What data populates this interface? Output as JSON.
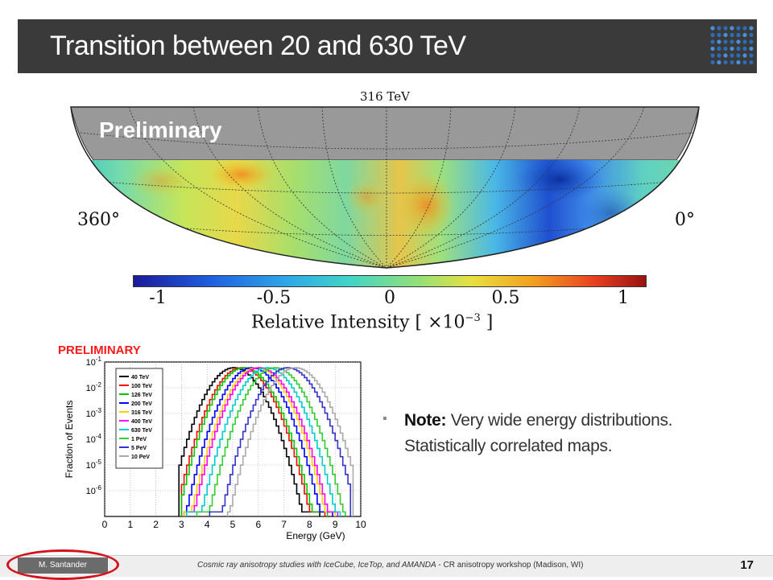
{
  "slide": {
    "title": "Transition between 20 and 630 TeV",
    "page_number": "17"
  },
  "skymap": {
    "energy_label": "316 TeV",
    "preliminary_label": "Preliminary",
    "lon_left": "360°",
    "lon_right": "0°",
    "colorbar_ticks": [
      "-1",
      "-0.5",
      "0",
      "0.5",
      "1"
    ],
    "colorbar_label": "Relative Intensity [ ×10",
    "colorbar_label_exp": "−3",
    "colorbar_label_end": " ]"
  },
  "chart_data": {
    "type": "line",
    "title": "PRELIMINARY",
    "xlabel": "Energy (GeV)",
    "ylabel": "Fraction of Events",
    "xlim": [
      0,
      10
    ],
    "ylim": [
      1e-07,
      0.1
    ],
    "yscale": "log",
    "xticks": [
      "0",
      "1",
      "2",
      "3",
      "4",
      "5",
      "6",
      "7",
      "8",
      "9",
      "10"
    ],
    "yticks": [
      "10-1",
      "10-2",
      "10-3",
      "10-4",
      "10-5",
      "10-6"
    ],
    "legend_position": "top-left",
    "series": [
      {
        "name": "40 TeV",
        "color": "#000000",
        "peak": 5.0,
        "start": 2.9,
        "end": 8.3
      },
      {
        "name": "100 TeV",
        "color": "#ff0000",
        "peak": 5.3,
        "start": 3.0,
        "end": 8.5
      },
      {
        "name": "126 TeV",
        "color": "#00c800",
        "peak": 5.4,
        "start": 3.0,
        "end": 8.6
      },
      {
        "name": "200 TeV",
        "color": "#0000ff",
        "peak": 5.7,
        "start": 3.1,
        "end": 8.8
      },
      {
        "name": "316 TeV",
        "color": "#ffcc00",
        "peak": 5.9,
        "start": 3.1,
        "end": 8.9
      },
      {
        "name": "400 TeV",
        "color": "#ff00ff",
        "peak": 6.0,
        "start": 3.2,
        "end": 9.0
      },
      {
        "name": "630 TeV",
        "color": "#00cccc",
        "peak": 6.3,
        "start": 3.2,
        "end": 9.1
      },
      {
        "name": "1 PeV",
        "color": "#33cc33",
        "peak": 6.6,
        "start": 3.6,
        "end": 9.3
      },
      {
        "name": "5 PeV",
        "color": "#3333cc",
        "peak": 7.1,
        "start": 4.1,
        "end": 9.5
      },
      {
        "name": "10 PeV",
        "color": "#aaaaaa",
        "peak": 7.4,
        "start": 4.8,
        "end": 9.6
      }
    ]
  },
  "note": {
    "bold": "Note:",
    "line1": " Very wide energy distributions.",
    "line2": "Statistically correlated maps."
  },
  "footer": {
    "author": "M. Santander",
    "center_italic": "Cosmic ray anisotropy studies with IceCube, IceTop, and AMANDA",
    "center_plain": " - CR anisotropy workshop (Madison, WI)"
  },
  "colors": {
    "header_bg": "#3a3a3a",
    "highlight_oval": "#d3121c",
    "preliminary_red": "#ff1a1a"
  }
}
